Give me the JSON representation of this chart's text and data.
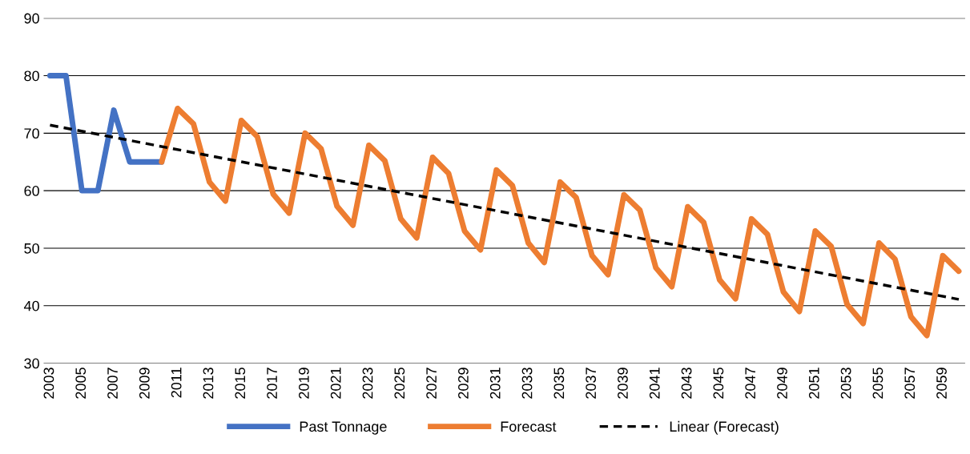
{
  "chart_data": {
    "type": "line",
    "x": [
      2003,
      2004,
      2005,
      2006,
      2007,
      2008,
      2009,
      2010,
      2011,
      2012,
      2013,
      2014,
      2015,
      2016,
      2017,
      2018,
      2019,
      2020,
      2021,
      2022,
      2023,
      2024,
      2025,
      2026,
      2027,
      2028,
      2029,
      2030,
      2031,
      2032,
      2033,
      2034,
      2035,
      2036,
      2037,
      2038,
      2039,
      2040,
      2041,
      2042,
      2043,
      2044,
      2045,
      2046,
      2047,
      2048,
      2049,
      2050,
      2051,
      2052,
      2053,
      2054,
      2055,
      2056,
      2057,
      2058,
      2059,
      2060
    ],
    "series": [
      {
        "name": "Past Tonnage",
        "color": "#4472c4",
        "values": [
          80,
          80,
          60,
          60,
          74,
          65,
          65,
          65,
          null,
          null,
          null,
          null,
          null,
          null,
          null,
          null,
          null,
          null,
          null,
          null,
          null,
          null,
          null,
          null,
          null,
          null,
          null,
          null,
          null,
          null,
          null,
          null,
          null,
          null,
          null,
          null,
          null,
          null,
          null,
          null,
          null,
          null,
          null,
          null,
          null,
          null,
          null,
          null,
          null,
          null,
          null,
          null,
          null,
          null,
          null,
          null,
          null,
          null
        ]
      },
      {
        "name": "Forecast",
        "color": "#ed7d31",
        "values": [
          null,
          null,
          null,
          null,
          null,
          null,
          null,
          65,
          74.3,
          71.6,
          61.5,
          58.2,
          72.2,
          69.4,
          59.4,
          56.1,
          70,
          67.3,
          57.3,
          54,
          67.9,
          65.2,
          55.1,
          51.8,
          65.8,
          63,
          53,
          49.7,
          63.6,
          60.9,
          50.9,
          47.5,
          61.5,
          58.8,
          48.7,
          45.4,
          59.3,
          56.6,
          46.6,
          43.3,
          57.2,
          54.5,
          44.5,
          41.2,
          55.1,
          52.4,
          42.4,
          39,
          53,
          50.3,
          40.2,
          36.9,
          50.9,
          48.1,
          38.1,
          34.8,
          48.7,
          46
        ]
      },
      {
        "name": "Linear (Forecast)",
        "color": "#000000",
        "line_style": "dashed",
        "x": [
          2003,
          2060
        ],
        "values": [
          71.4,
          41.1
        ]
      }
    ],
    "xlim": [
      2002.6,
      2060.4
    ],
    "xticks": [
      2003,
      2005,
      2007,
      2009,
      2011,
      2013,
      2015,
      2017,
      2019,
      2021,
      2023,
      2025,
      2027,
      2029,
      2031,
      2033,
      2035,
      2037,
      2039,
      2041,
      2043,
      2045,
      2047,
      2049,
      2051,
      2053,
      2055,
      2057,
      2059
    ],
    "ylim": [
      30,
      90
    ],
    "yticks": [
      30,
      40,
      50,
      60,
      70,
      80,
      90
    ],
    "grid": "y",
    "legend": "bottom",
    "line_style": "solid"
  }
}
